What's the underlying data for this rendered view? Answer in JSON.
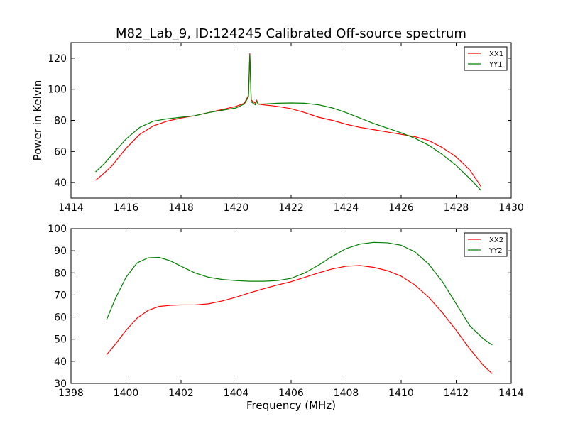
{
  "title": "M82_Lab_9, ID:124245 Calibrated Off-source spectrum",
  "colors": {
    "xx": "#ff0000",
    "yy": "#008000"
  },
  "chart_data": [
    {
      "type": "line",
      "xlabel": "",
      "ylabel": "Power in Kelvin",
      "xlim": [
        1414,
        1430
      ],
      "ylim": [
        30,
        130
      ],
      "xticks": [
        1414,
        1416,
        1418,
        1420,
        1422,
        1424,
        1426,
        1428,
        1430
      ],
      "yticks": [
        40,
        60,
        80,
        100,
        120
      ],
      "grid": false,
      "legend": "top-right",
      "series": [
        {
          "name": "XX1",
          "color": "#ff0000",
          "x": [
            1414.9,
            1415.2,
            1415.5,
            1416.0,
            1416.5,
            1417.0,
            1417.5,
            1418.0,
            1418.5,
            1419.0,
            1419.5,
            1420.0,
            1420.3,
            1420.45,
            1420.5,
            1420.55,
            1420.7,
            1420.75,
            1420.8,
            1421.0,
            1421.5,
            1422.0,
            1422.5,
            1423.0,
            1423.5,
            1424.0,
            1424.5,
            1425.0,
            1425.5,
            1426.0,
            1426.5,
            1427.0,
            1427.5,
            1428.0,
            1428.5,
            1428.9
          ],
          "values": [
            41.5,
            46,
            51,
            62,
            71,
            76.5,
            79.5,
            81.5,
            83,
            85,
            87,
            89,
            91,
            96,
            123,
            93,
            91,
            93,
            90.5,
            90,
            89,
            87.5,
            85,
            82,
            80,
            77.5,
            75.5,
            74,
            72.5,
            71,
            69.5,
            67,
            62.5,
            56.5,
            48,
            37.5
          ]
        },
        {
          "name": "YY1",
          "color": "#008000",
          "x": [
            1414.9,
            1415.2,
            1415.5,
            1416.0,
            1416.5,
            1417.0,
            1417.5,
            1418.0,
            1418.5,
            1419.0,
            1419.5,
            1420.0,
            1420.3,
            1420.45,
            1420.5,
            1420.55,
            1420.7,
            1420.75,
            1420.8,
            1421.0,
            1421.5,
            1422.0,
            1422.5,
            1423.0,
            1423.5,
            1424.0,
            1424.5,
            1425.0,
            1425.5,
            1426.0,
            1426.5,
            1427.0,
            1427.5,
            1428.0,
            1428.5,
            1428.9
          ],
          "values": [
            47,
            52,
            58,
            68,
            75.5,
            79.5,
            81,
            82,
            83,
            85,
            86.5,
            88,
            90.5,
            95,
            122,
            92,
            90,
            92.5,
            90.5,
            90.5,
            91,
            91.2,
            91,
            90,
            88,
            85,
            81.5,
            78,
            75,
            72,
            68.5,
            64,
            58,
            51,
            42.5,
            35
          ]
        }
      ]
    },
    {
      "type": "line",
      "xlabel": "Frequency (MHz)",
      "ylabel": "",
      "xlim": [
        1398,
        1414
      ],
      "ylim": [
        30,
        100
      ],
      "xticks": [
        1398,
        1400,
        1402,
        1404,
        1406,
        1408,
        1410,
        1412,
        1414
      ],
      "yticks": [
        30,
        40,
        50,
        60,
        70,
        80,
        90,
        100
      ],
      "grid": false,
      "legend": "top-right",
      "series": [
        {
          "name": "XX2",
          "color": "#ff0000",
          "x": [
            1399.3,
            1399.6,
            1400.0,
            1400.4,
            1400.8,
            1401.2,
            1401.6,
            1402.0,
            1402.5,
            1403.0,
            1403.5,
            1404.0,
            1404.5,
            1405.0,
            1405.5,
            1406.0,
            1406.5,
            1407.0,
            1407.5,
            1408.0,
            1408.5,
            1409.0,
            1409.5,
            1410.0,
            1410.5,
            1411.0,
            1411.5,
            1412.0,
            1412.5,
            1413.0,
            1413.3
          ],
          "values": [
            43,
            47.5,
            54,
            59.5,
            63,
            64.8,
            65.3,
            65.5,
            65.5,
            66,
            67.3,
            69,
            71,
            72.8,
            74.5,
            76,
            78,
            80,
            81.8,
            83,
            83.3,
            82.5,
            81,
            78.5,
            74.5,
            69,
            62,
            54,
            45.5,
            38,
            34.5
          ]
        },
        {
          "name": "YY2",
          "color": "#008000",
          "x": [
            1399.3,
            1399.6,
            1400.0,
            1400.4,
            1400.8,
            1401.2,
            1401.6,
            1402.0,
            1402.5,
            1403.0,
            1403.5,
            1404.0,
            1404.5,
            1405.0,
            1405.5,
            1406.0,
            1406.5,
            1407.0,
            1407.5,
            1408.0,
            1408.5,
            1409.0,
            1409.5,
            1410.0,
            1410.5,
            1411.0,
            1411.5,
            1412.0,
            1412.5,
            1413.0,
            1413.3
          ],
          "values": [
            59,
            68,
            78,
            84.5,
            86.8,
            87,
            85.5,
            83,
            80,
            78,
            77,
            76.5,
            76.2,
            76.2,
            76.5,
            77.5,
            80,
            83.5,
            87.5,
            91,
            93,
            93.8,
            93.6,
            92.5,
            89.5,
            84,
            76,
            66,
            56,
            50,
            47.5
          ]
        }
      ]
    }
  ]
}
